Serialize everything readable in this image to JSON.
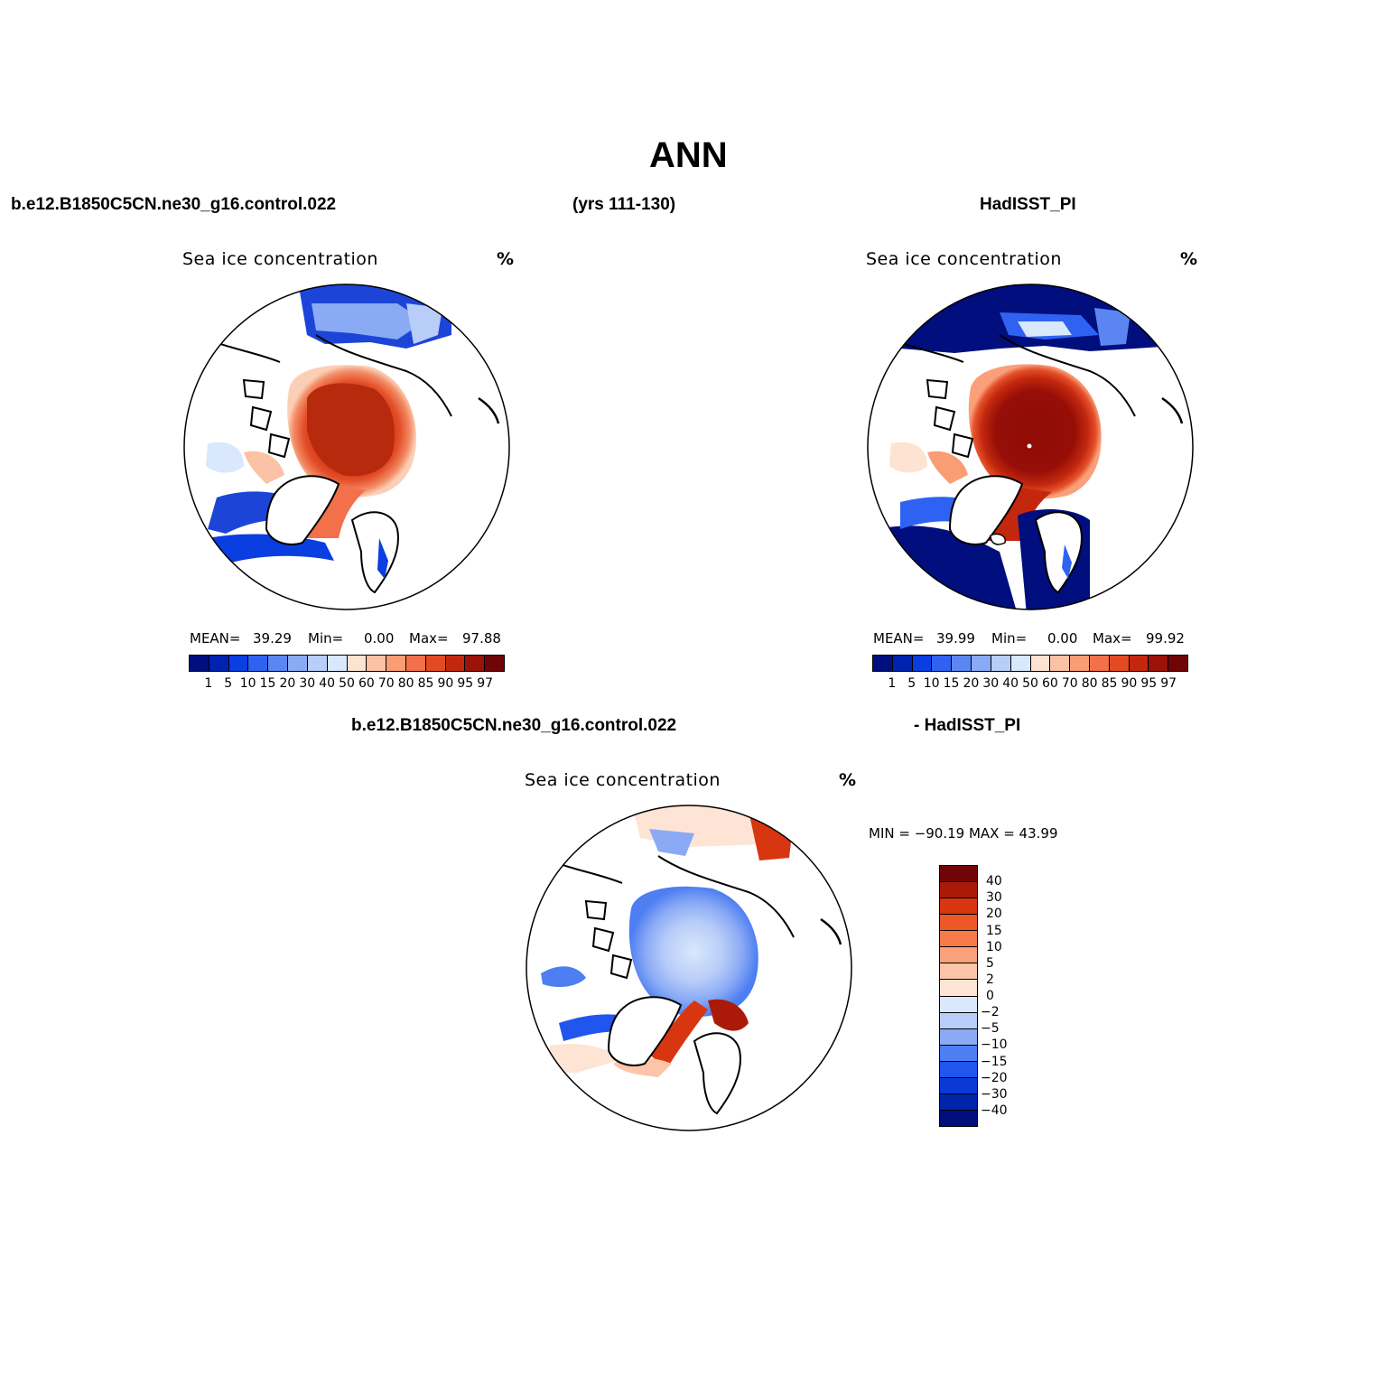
{
  "title": "ANN",
  "header": {
    "case_name": "b.e12.B1850C5CN.ne30_g16.control.022",
    "years": "(yrs 111-130)",
    "obs_name": "HadISST_PI"
  },
  "panels": [
    {
      "id": "model",
      "variable_label": "Sea ice concentration",
      "unit": "%",
      "stats": {
        "mean_label": "MEAN=",
        "mean": "39.29",
        "min_label": "Min=",
        "min": "0.00",
        "max_label": "Max=",
        "max": "97.88"
      }
    },
    {
      "id": "obs",
      "variable_label": "Sea ice concentration",
      "unit": "%",
      "stats": {
        "mean_label": "MEAN=",
        "mean": "39.99",
        "min_label": "Min=",
        "min": "0.00",
        "max_label": "Max=",
        "max": "99.92"
      }
    }
  ],
  "difference": {
    "title_left": "b.e12.B1850C5CN.ne30_g16.control.022",
    "title_right": "- HadISST_PI",
    "variable_label": "Sea ice concentration",
    "unit": "%",
    "minmax_text": "MIN = −90.19  MAX =   43.99"
  },
  "colorbar_levels": [
    "1",
    "5",
    "10",
    "15",
    "20",
    "30",
    "40",
    "50",
    "60",
    "70",
    "80",
    "85",
    "90",
    "95",
    "97"
  ],
  "colorbar_colors": [
    "#000e7e",
    "#0022b0",
    "#0a3ee0",
    "#2f62f2",
    "#5b86f2",
    "#8aaaf5",
    "#b8cdf8",
    "#d9e8fc",
    "#fde3d2",
    "#fbc2a5",
    "#f99d75",
    "#f2704a",
    "#e24a22",
    "#c3280e",
    "#9a120a",
    "#700406"
  ],
  "diff_levels": [
    "40",
    "30",
    "20",
    "15",
    "10",
    "5",
    "2",
    "0",
    "−2",
    "−5",
    "−10",
    "−15",
    "−20",
    "−30",
    "−40"
  ],
  "diff_colors": [
    "#700406",
    "#ab1a08",
    "#d83610",
    "#ee5726",
    "#f67b48",
    "#f9a27a",
    "#fcc5a9",
    "#fde4d4",
    "#d9e8fc",
    "#b8cdf8",
    "#8aaaf5",
    "#4d7ef2",
    "#2056ee",
    "#0a3ad6",
    "#0024aa",
    "#000e7e"
  ]
}
